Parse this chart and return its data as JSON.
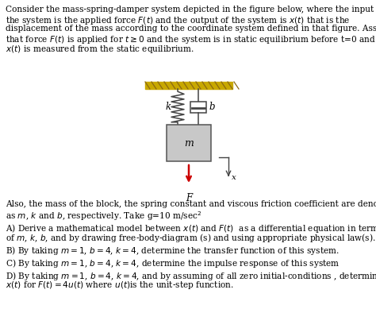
{
  "bg_color": "#ffffff",
  "text_color": "#000000",
  "fig_width": 4.74,
  "fig_height": 3.89,
  "dpi": 100,
  "paragraph1_line1": "Consider the mass-spring-damper system depicted in the figure below, where the input of",
  "paragraph1_line2": "the system is the applied force $F(t)$ and the output of the system is $x(t)$ that is the",
  "paragraph1_line3": "displacement of the mass according to the coordinate system defined in that figure. Assume",
  "paragraph1_line4": "that force $F(t)$ is applied for $t \\geq 0$ and the system is in static equilibrium before t=0 and",
  "paragraph1_line5": "$x(t)$ is measured from the static equilibrium.",
  "paragraph2_line1": "Also, the mass of the block, the spring constant and viscous friction coefficient are denoted",
  "paragraph2_line2": "as $m$, $k$ and $b$, respectively. Take g=10 m/sec$^2$",
  "lineA_1": "A) Derive a mathematical model between $x(t)$ and $F(t)$  as a differential equation in terms",
  "lineA_2": "of $m$, $k$, $b$, and by drawing free-body-diagram (s) and using appropriate physical law(s).",
  "lineB": "B) By taking $m = 1$, $b = 4$, $k = 4$, determine the transfer function of this system.",
  "lineC": "C) By taking $m = 1$, $b = 4$, $k = 4$, determine the impulse response of this system",
  "lineD_1": "D) By taking $m = 1$, $b = 4$, $k = 4$, and by assuming of all zero initial-conditions , determine",
  "lineD_2": "$x(t)$ for $F(t) = 4u(t)$ where $u(t)$is the unit-step function.",
  "mass_color": "#c8c8c8",
  "mass_label": "m",
  "spring_label": "k",
  "damper_label": "b",
  "force_color": "#cc0000",
  "force_label": "F",
  "x_label": "x",
  "ceil_color": "#c8a800",
  "ceil_hatch_color": "#8b6914"
}
